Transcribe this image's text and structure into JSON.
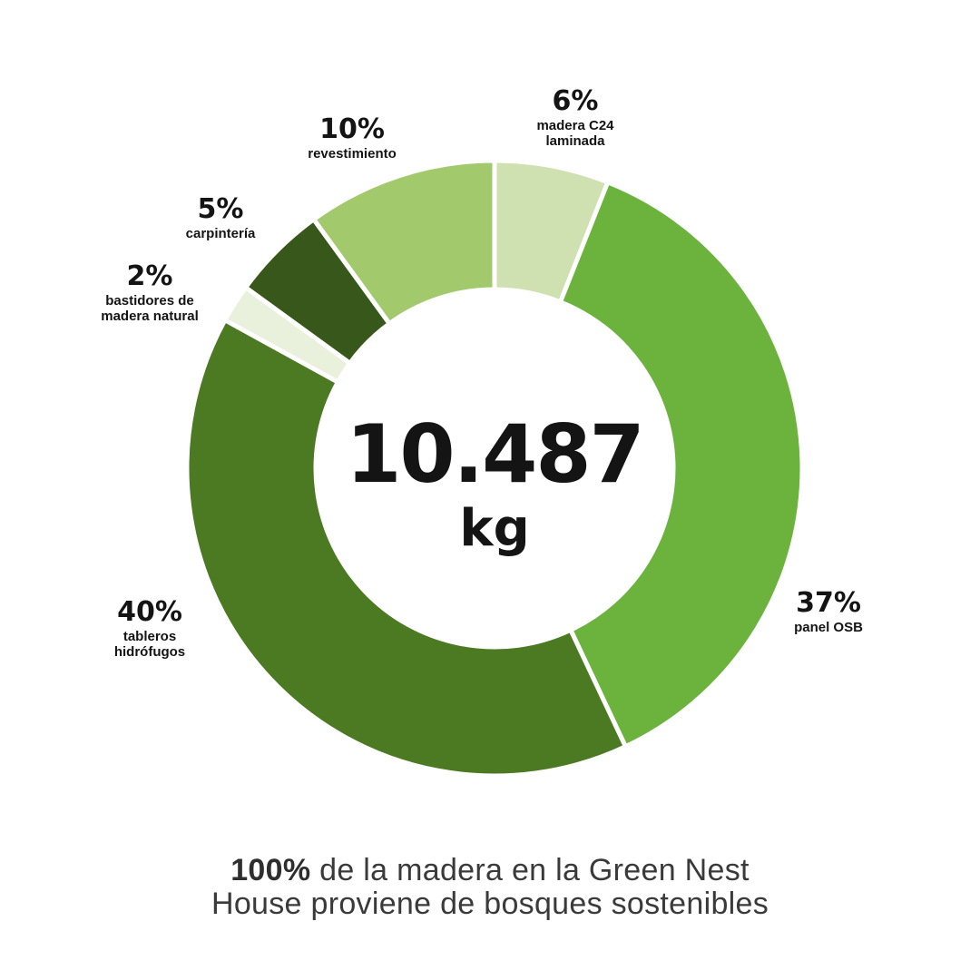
{
  "colors": {
    "background": "#ffffff",
    "label_text": "#141414",
    "caption_text": "#3a3a3a",
    "divider": "#ffffff"
  },
  "chart_data": {
    "type": "pie",
    "subtype": "donut",
    "direction": "clockwise",
    "start_angle_deg": 0,
    "center_value": "10.487",
    "center_unit": "kg",
    "total_label": "100%",
    "segments": [
      {
        "name": "madera C24 laminada",
        "pct": 6,
        "pct_label": "6%",
        "name_label": "madera C24\nlaminada",
        "color": "#cfe0b1"
      },
      {
        "name": "panel OSB",
        "pct": 37,
        "pct_label": "37%",
        "name_label": "panel OSB",
        "color": "#6cb33e"
      },
      {
        "name": "tableros hidrofugos",
        "pct": 40,
        "pct_label": "40%",
        "name_label": "tableros\nhidrófugos",
        "color": "#4c7a22"
      },
      {
        "name": "bastidores de madera natural",
        "pct": 2,
        "pct_label": "2%",
        "name_label": "bastidores de\nmadera natural",
        "color": "#e9f0dc"
      },
      {
        "name": "carpinteria",
        "pct": 5,
        "pct_label": "5%",
        "name_label": "carpintería",
        "color": "#38571a"
      },
      {
        "name": "revestimiento",
        "pct": 10,
        "pct_label": "10%",
        "name_label": "revestimiento",
        "color": "#a3c96d"
      }
    ]
  },
  "caption": {
    "line1_bold": "100%",
    "line1_rest": " de la madera en la Green Nest",
    "line2": "House proviene de bosques sostenibles"
  }
}
